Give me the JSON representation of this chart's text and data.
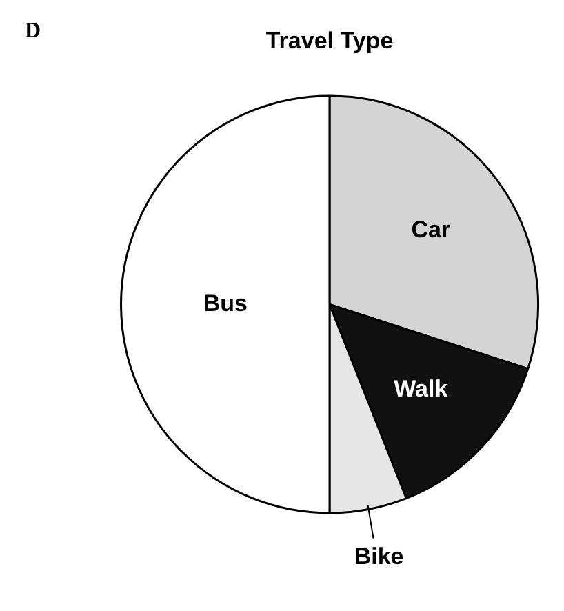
{
  "chart_data": {
    "type": "pie",
    "title": "Travel Type",
    "annotations": [
      "D"
    ],
    "categories": [
      "Car",
      "Walk",
      "Bike",
      "Bus"
    ],
    "values": [
      30,
      14,
      6,
      50
    ],
    "colors": [
      "#d4d4d4",
      "#111111",
      "#e6e6e6",
      "#ffffff"
    ]
  }
}
